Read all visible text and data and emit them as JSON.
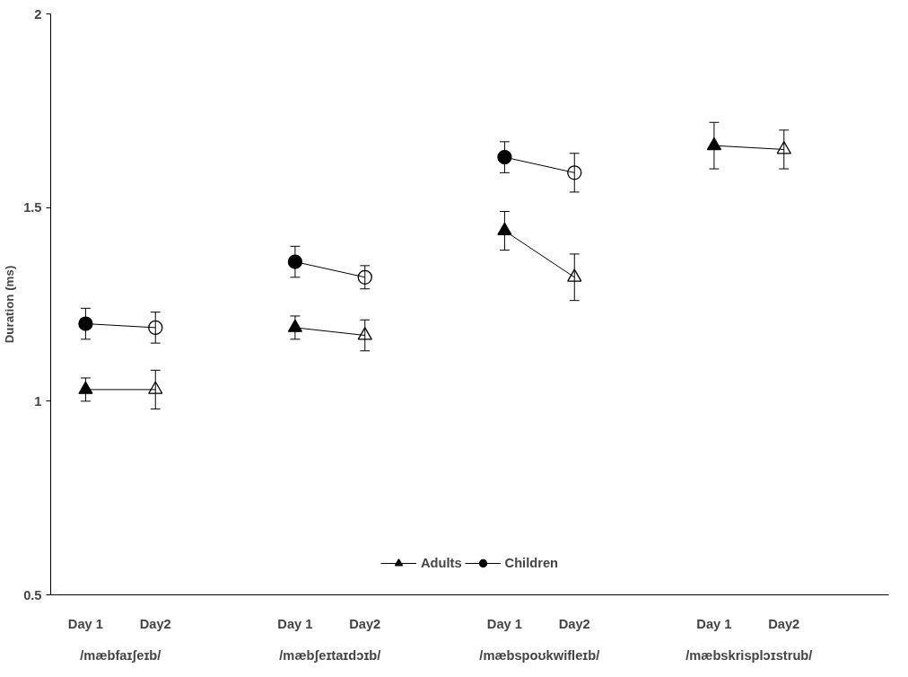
{
  "chart_data": {
    "type": "line",
    "ylabel": "Duration (ms)",
    "categories": [
      "Day 1",
      "Day2",
      null,
      "Day 1",
      "Day2",
      null,
      "Day 1",
      "Day2",
      null,
      "Day 1",
      "Day2"
    ],
    "ylim": [
      0.5,
      2
    ],
    "yticks": [
      0.5,
      1,
      1.5,
      2
    ],
    "series": [
      {
        "name": "Adults",
        "color": "#000000",
        "marker": "triangle",
        "values": [
          1.03,
          1.03,
          null,
          1.19,
          1.17,
          null,
          1.44,
          1.32,
          null,
          1.66,
          1.65
        ],
        "errors": [
          0.03,
          0.05,
          null,
          0.03,
          0.04,
          null,
          0.05,
          0.06,
          null,
          0.06,
          0.05
        ]
      },
      {
        "name": "Children",
        "color": "#000000",
        "marker": "circle",
        "values": [
          1.2,
          1.19,
          null,
          1.36,
          1.32,
          null,
          1.63,
          1.59,
          null,
          null,
          null
        ],
        "errors": [
          0.04,
          0.04,
          null,
          0.04,
          0.03,
          null,
          0.04,
          0.05,
          null,
          null,
          null
        ]
      }
    ],
    "annotations": [
      "/mæbfaɪʃeɪb/",
      "/mæbʃeɪtaɪdɔɪb/",
      "/mæbspoʊkwifleɪb/",
      "/mæbskrisplɔɪstrub/"
    ],
    "legend": "bottom"
  }
}
